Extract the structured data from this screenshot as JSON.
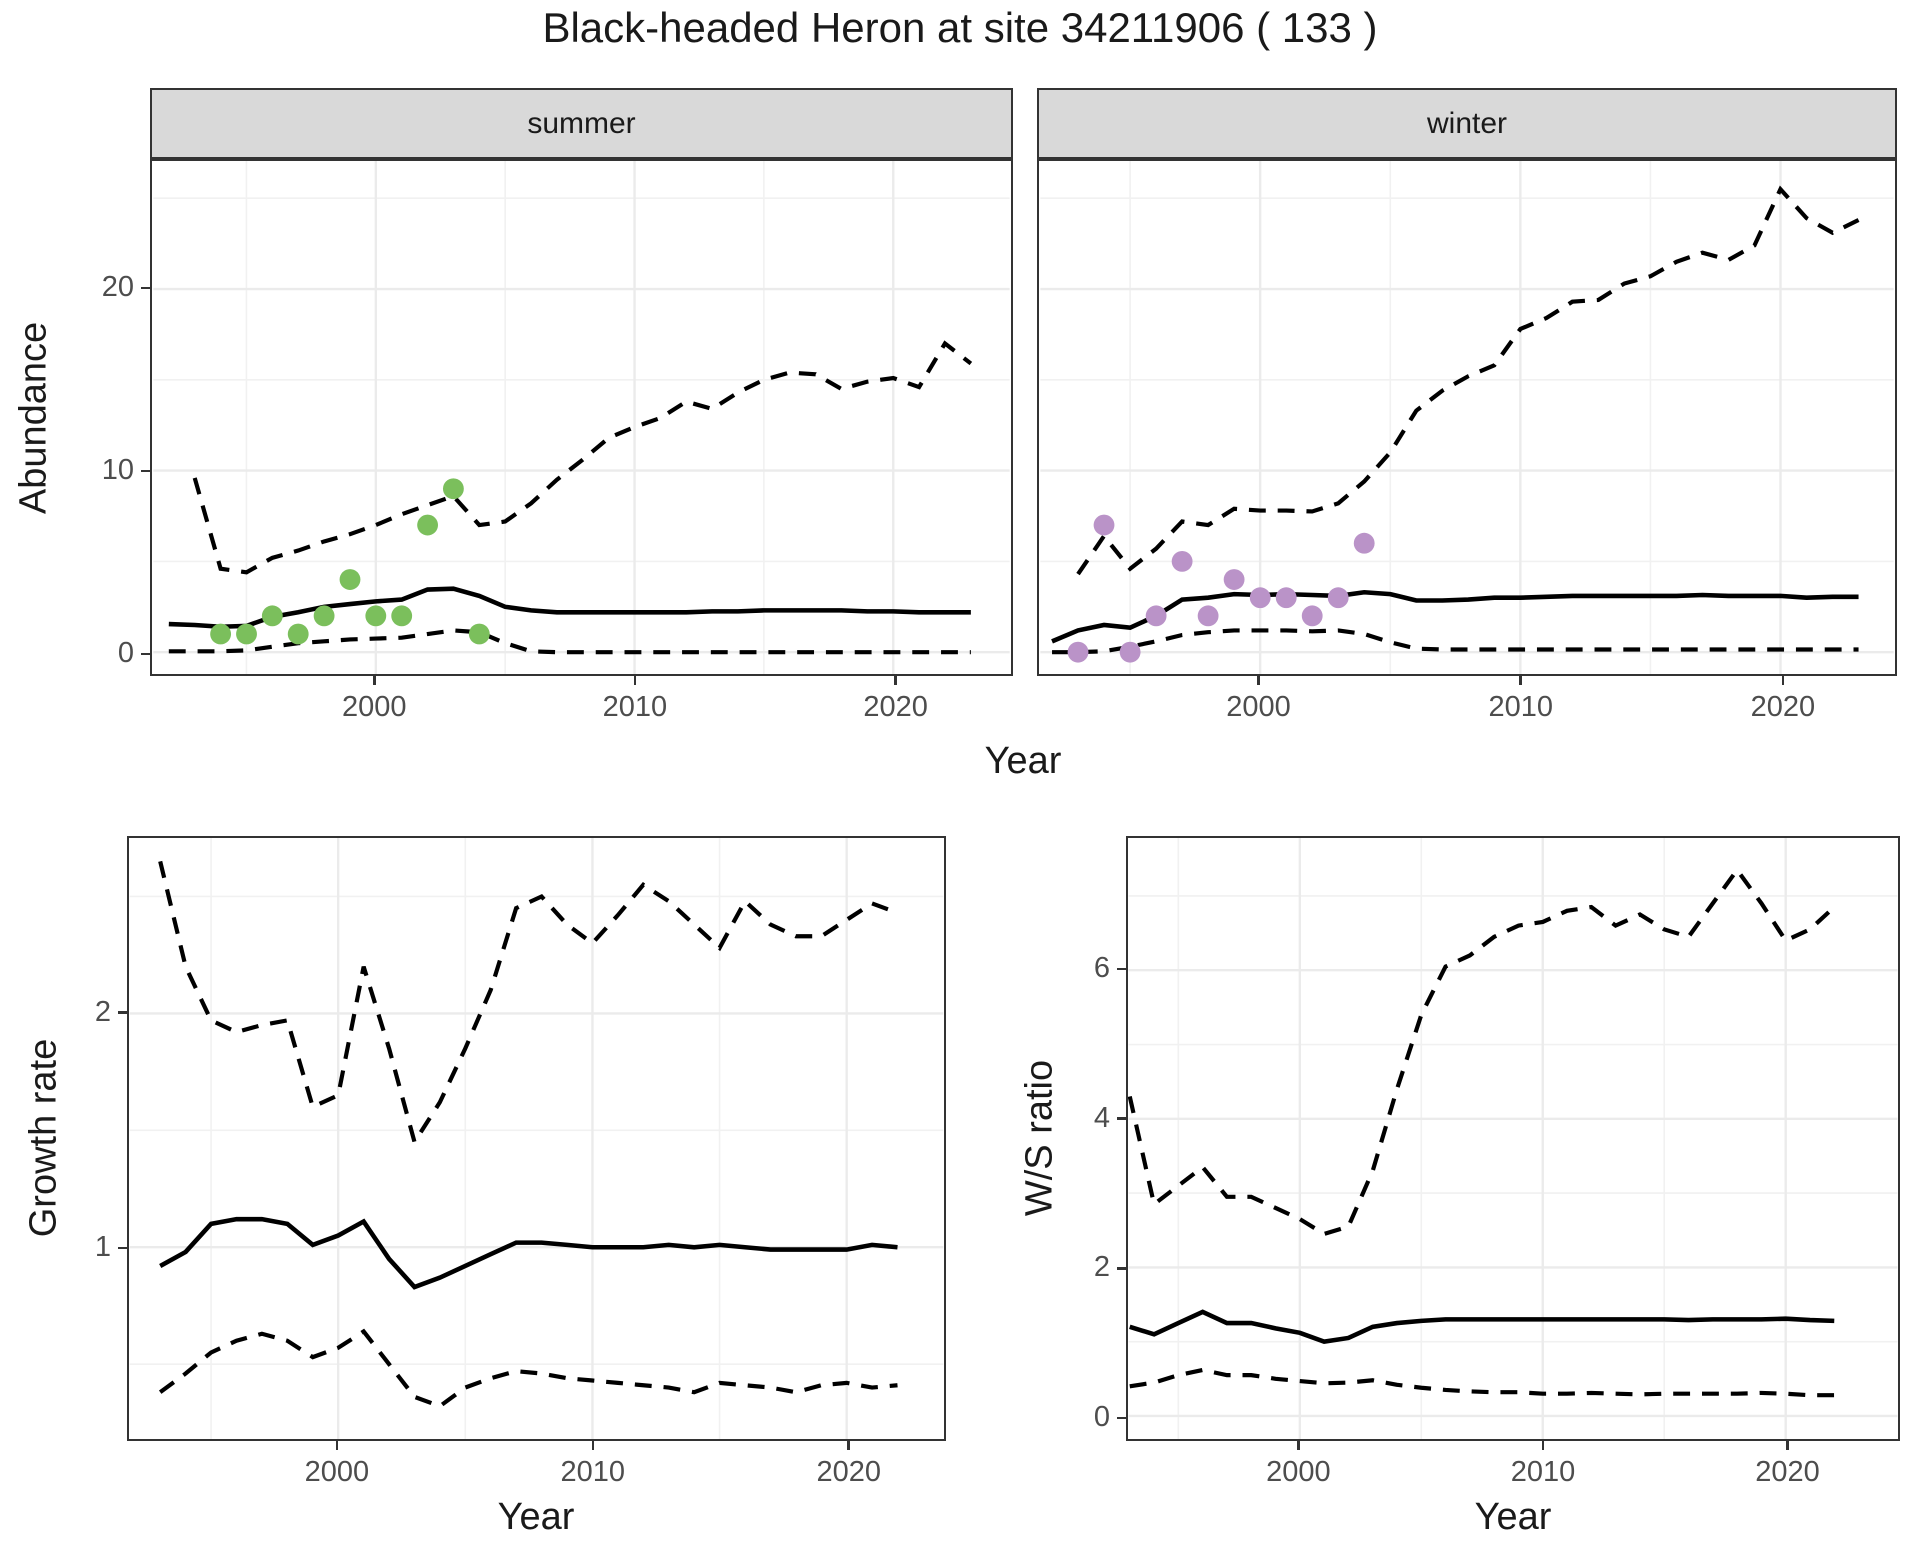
{
  "title": "Black-headed Heron at site 34211906 ( 133 )",
  "colors": {
    "line": "#000000",
    "grid_major": "#ebebeb",
    "grid_minor": "#f1f1f1",
    "strip_bg": "#d9d9d9",
    "panel_border": "#333333",
    "axis_text": "#4d4d4d",
    "summer_points": "#7bbf5c",
    "winter_points": "#ba93c8"
  },
  "chart_data": [
    {
      "id": "summer-abundance",
      "type": "line",
      "facet": "summer",
      "xlabel": "Year",
      "ylabel": "Abundance",
      "xlim": [
        1991.4,
        2024.5
      ],
      "ylim": [
        -1.2,
        27.05
      ],
      "x_major": [
        2000,
        2010,
        2020
      ],
      "x_minor": [
        1995,
        2005,
        2015
      ],
      "y_major": [
        0,
        10,
        20
      ],
      "y_minor": [
        5,
        15,
        25
      ],
      "x_tick_labels": [
        "2000",
        "2010",
        "2020"
      ],
      "y_tick_labels": [
        "0",
        "10",
        "20"
      ],
      "grid": true,
      "legend": "none",
      "series": [
        {
          "name": "median",
          "dash": false,
          "x": [
            1992,
            1993,
            1994,
            1995,
            1996,
            1997,
            1998,
            1999,
            2000,
            2001,
            2002,
            2003,
            2004,
            2005,
            2006,
            2007,
            2008,
            2009,
            2010,
            2011,
            2012,
            2013,
            2014,
            2015,
            2016,
            2017,
            2018,
            2019,
            2020,
            2021,
            2022,
            2023
          ],
          "y": [
            1.55,
            1.5,
            1.4,
            1.45,
            1.95,
            2.2,
            2.5,
            2.65,
            2.8,
            2.9,
            3.45,
            3.5,
            3.1,
            2.5,
            2.3,
            2.2,
            2.2,
            2.2,
            2.2,
            2.2,
            2.2,
            2.25,
            2.25,
            2.3,
            2.3,
            2.3,
            2.3,
            2.25,
            2.25,
            2.2,
            2.2,
            2.2
          ]
        },
        {
          "name": "upper-95ci",
          "dash": true,
          "x": [
            1993,
            1994,
            1995,
            1996,
            1997,
            1998,
            1999,
            2000,
            2001,
            2002,
            2003,
            2004,
            2005,
            2006,
            2007,
            2008,
            2009,
            2010,
            2011,
            2012,
            2013,
            2014,
            2015,
            2016,
            2017,
            2018,
            2019,
            2020,
            2021,
            2022,
            2023
          ],
          "y": [
            9.6,
            4.6,
            4.4,
            5.2,
            5.6,
            6.1,
            6.5,
            7.0,
            7.6,
            8.1,
            8.6,
            7.0,
            7.2,
            8.2,
            9.5,
            10.6,
            11.8,
            12.4,
            12.9,
            13.8,
            13.4,
            14.3,
            15.0,
            15.4,
            15.3,
            14.5,
            14.9,
            15.1,
            14.6,
            17.0,
            15.9
          ]
        },
        {
          "name": "lower-95ci",
          "dash": true,
          "x": [
            1992,
            1993,
            1994,
            1995,
            1996,
            1997,
            1998,
            1999,
            2000,
            2001,
            2002,
            2003,
            2004,
            2005,
            2006,
            2007,
            2008,
            2009,
            2010,
            2011,
            2012,
            2013,
            2014,
            2015,
            2016,
            2017,
            2018,
            2019,
            2020,
            2021,
            2022,
            2023
          ],
          "y": [
            0.05,
            0.05,
            0.05,
            0.1,
            0.3,
            0.5,
            0.6,
            0.7,
            0.75,
            0.8,
            1.0,
            1.2,
            1.1,
            0.5,
            0.05,
            0,
            0,
            0,
            0,
            0,
            0,
            0,
            0,
            0,
            0,
            0,
            0,
            0,
            0,
            0,
            0,
            0
          ]
        }
      ],
      "points": {
        "name": "observed-counts-summer",
        "color": "#7bbf5c",
        "x": [
          1994,
          1995,
          1996,
          1997,
          1998,
          1999,
          2000,
          2001,
          2002,
          2003,
          2004
        ],
        "y": [
          1,
          1,
          2,
          1,
          2,
          4,
          2,
          2,
          7,
          9,
          1
        ]
      }
    },
    {
      "id": "winter-abundance",
      "type": "line",
      "facet": "winter",
      "xlabel": "Year",
      "ylabel": "Abundance",
      "xlim": [
        1991.55,
        2024.35
      ],
      "ylim": [
        -1.2,
        27.05
      ],
      "x_major": [
        2000,
        2010,
        2020
      ],
      "x_minor": [
        1995,
        2005,
        2015
      ],
      "y_major": [
        0,
        10,
        20
      ],
      "y_minor": [
        5,
        15,
        25
      ],
      "x_tick_labels": [
        "2000",
        "2010",
        "2020"
      ],
      "y_tick_labels": [],
      "grid": true,
      "legend": "none",
      "series": [
        {
          "name": "median",
          "dash": false,
          "x": [
            1992,
            1993,
            1994,
            1995,
            1996,
            1997,
            1998,
            1999,
            2000,
            2001,
            2002,
            2003,
            2004,
            2005,
            2006,
            2007,
            2008,
            2009,
            2010,
            2011,
            2012,
            2013,
            2014,
            2015,
            2016,
            2017,
            2018,
            2019,
            2020,
            2021,
            2022,
            2023
          ],
          "y": [
            0.6,
            1.2,
            1.5,
            1.35,
            2.0,
            2.9,
            3.0,
            3.2,
            3.15,
            3.2,
            3.15,
            3.1,
            3.3,
            3.2,
            2.85,
            2.85,
            2.9,
            3.0,
            3.0,
            3.05,
            3.1,
            3.1,
            3.1,
            3.1,
            3.1,
            3.15,
            3.1,
            3.1,
            3.1,
            3.0,
            3.05,
            3.05
          ]
        },
        {
          "name": "upper-95ci",
          "dash": true,
          "x": [
            1993,
            1994,
            1995,
            1996,
            1997,
            1998,
            1999,
            2000,
            2001,
            2002,
            2003,
            2004,
            2005,
            2006,
            2007,
            2008,
            2009,
            2010,
            2011,
            2012,
            2013,
            2014,
            2015,
            2016,
            2017,
            2018,
            2019,
            2020,
            2021,
            2022,
            2023
          ],
          "y": [
            4.3,
            6.4,
            4.6,
            5.7,
            7.2,
            7.0,
            7.9,
            7.8,
            7.8,
            7.75,
            8.2,
            9.4,
            11.0,
            13.3,
            14.4,
            15.2,
            15.8,
            17.8,
            18.4,
            19.3,
            19.4,
            20.3,
            20.7,
            21.5,
            22.0,
            21.6,
            22.4,
            25.5,
            23.9,
            23.1,
            23.8
          ]
        },
        {
          "name": "lower-95ci",
          "dash": true,
          "x": [
            1992,
            1993,
            1994,
            1995,
            1996,
            1997,
            1998,
            1999,
            2000,
            2001,
            2002,
            2003,
            2004,
            2005,
            2006,
            2007,
            2008,
            2009,
            2010,
            2011,
            2012,
            2013,
            2014,
            2015,
            2016,
            2017,
            2018,
            2019,
            2020,
            2021,
            2022,
            2023
          ],
          "y": [
            0,
            0,
            0.05,
            0.3,
            0.6,
            0.95,
            1.1,
            1.2,
            1.2,
            1.2,
            1.15,
            1.2,
            1.0,
            0.55,
            0.2,
            0.15,
            0.15,
            0.15,
            0.15,
            0.15,
            0.15,
            0.15,
            0.15,
            0.15,
            0.15,
            0.15,
            0.15,
            0.15,
            0.15,
            0.15,
            0.15,
            0.15
          ]
        }
      ],
      "points": {
        "name": "observed-counts-winter",
        "color": "#ba93c8",
        "x": [
          1993,
          1994,
          1995,
          1996,
          1997,
          1998,
          1999,
          2000,
          2001,
          2002,
          2003,
          2004
        ],
        "y": [
          0,
          7,
          0,
          2,
          5,
          2,
          4,
          3,
          3,
          2,
          3,
          6
        ]
      }
    },
    {
      "id": "growth-rate",
      "type": "line",
      "facet": "",
      "xlabel": "Year",
      "ylabel": "Growth rate",
      "xlim": [
        1991.8,
        2023.8
      ],
      "ylim": [
        0.18,
        2.75
      ],
      "x_major": [
        2000,
        2010,
        2020
      ],
      "x_minor": [
        1995,
        2005,
        2015
      ],
      "y_major": [
        1,
        2
      ],
      "y_minor": [
        0.5,
        1.5,
        2.5
      ],
      "x_tick_labels": [
        "2000",
        "2010",
        "2020"
      ],
      "y_tick_labels": [
        "1",
        "2"
      ],
      "grid": true,
      "legend": "none",
      "series": [
        {
          "name": "median",
          "dash": false,
          "x": [
            1993,
            1994,
            1995,
            1996,
            1997,
            1998,
            1999,
            2000,
            2001,
            2002,
            2003,
            2004,
            2005,
            2006,
            2007,
            2008,
            2009,
            2010,
            2011,
            2012,
            2013,
            2014,
            2015,
            2016,
            2017,
            2018,
            2019,
            2020,
            2021,
            2022
          ],
          "y": [
            0.92,
            0.98,
            1.1,
            1.12,
            1.12,
            1.1,
            1.01,
            1.05,
            1.11,
            0.95,
            0.83,
            0.87,
            0.92,
            0.97,
            1.02,
            1.02,
            1.01,
            1.0,
            1.0,
            1.0,
            1.01,
            1.0,
            1.01,
            1.0,
            0.99,
            0.99,
            0.99,
            0.99,
            1.01,
            1.0
          ]
        },
        {
          "name": "upper-95ci",
          "dash": true,
          "x": [
            1993,
            1994,
            1995,
            1996,
            1997,
            1998,
            1999,
            2000,
            2001,
            2002,
            2003,
            2004,
            2005,
            2006,
            2007,
            2008,
            2009,
            2010,
            2011,
            2012,
            2013,
            2014,
            2015,
            2016,
            2017,
            2018,
            2019,
            2020,
            2021,
            2022
          ],
          "y": [
            2.65,
            2.2,
            1.97,
            1.92,
            1.95,
            1.97,
            1.6,
            1.65,
            2.2,
            1.85,
            1.45,
            1.62,
            1.85,
            2.1,
            2.45,
            2.5,
            2.38,
            2.3,
            2.42,
            2.55,
            2.48,
            2.38,
            2.28,
            2.48,
            2.38,
            2.33,
            2.33,
            2.4,
            2.47,
            2.43
          ]
        },
        {
          "name": "lower-95ci",
          "dash": true,
          "x": [
            1993,
            1994,
            1995,
            1996,
            1997,
            1998,
            1999,
            2000,
            2001,
            2002,
            2003,
            2004,
            2005,
            2006,
            2007,
            2008,
            2009,
            2010,
            2011,
            2012,
            2013,
            2014,
            2015,
            2016,
            2017,
            2018,
            2019,
            2020,
            2021,
            2022
          ],
          "y": [
            0.38,
            0.46,
            0.55,
            0.6,
            0.63,
            0.6,
            0.53,
            0.57,
            0.64,
            0.5,
            0.36,
            0.32,
            0.4,
            0.44,
            0.47,
            0.46,
            0.44,
            0.43,
            0.42,
            0.41,
            0.4,
            0.38,
            0.42,
            0.41,
            0.4,
            0.38,
            0.41,
            0.42,
            0.4,
            0.41
          ]
        }
      ],
      "points": null
    },
    {
      "id": "ws-ratio",
      "type": "line",
      "facet": "",
      "xlabel": "Year",
      "ylabel": "W/S ratio",
      "xlim": [
        1992.95,
        2024.6
      ],
      "ylim": [
        -0.31,
        7.78
      ],
      "x_major": [
        2000,
        2010,
        2020
      ],
      "x_minor": [
        1995,
        2005,
        2015
      ],
      "y_major": [
        0,
        2,
        4,
        6
      ],
      "y_minor": [
        1,
        3,
        5,
        7
      ],
      "x_tick_labels": [
        "2000",
        "2010",
        "2020"
      ],
      "y_tick_labels": [
        "0",
        "2",
        "4",
        "6"
      ],
      "grid": true,
      "legend": "none",
      "series": [
        {
          "name": "median",
          "dash": false,
          "x": [
            1993,
            1994,
            1995,
            1996,
            1997,
            1998,
            1999,
            2000,
            2001,
            2002,
            2003,
            2004,
            2005,
            2006,
            2007,
            2008,
            2009,
            2010,
            2011,
            2012,
            2013,
            2014,
            2015,
            2016,
            2017,
            2018,
            2019,
            2020,
            2021,
            2022
          ],
          "y": [
            1.2,
            1.1,
            1.25,
            1.4,
            1.25,
            1.25,
            1.18,
            1.12,
            1.0,
            1.05,
            1.2,
            1.25,
            1.28,
            1.3,
            1.3,
            1.3,
            1.3,
            1.3,
            1.3,
            1.3,
            1.3,
            1.3,
            1.3,
            1.29,
            1.3,
            1.3,
            1.3,
            1.31,
            1.29,
            1.28
          ]
        },
        {
          "name": "upper-95ci",
          "dash": true,
          "x": [
            1993,
            1994,
            1995,
            1996,
            1997,
            1998,
            1999,
            2000,
            2001,
            2002,
            2003,
            2004,
            2005,
            2006,
            2007,
            2008,
            2009,
            2010,
            2011,
            2012,
            2013,
            2014,
            2015,
            2016,
            2017,
            2018,
            2019,
            2020,
            2021,
            2022
          ],
          "y": [
            4.3,
            2.85,
            3.1,
            3.35,
            2.95,
            2.95,
            2.8,
            2.65,
            2.45,
            2.55,
            3.3,
            4.4,
            5.4,
            6.05,
            6.2,
            6.45,
            6.6,
            6.65,
            6.8,
            6.85,
            6.6,
            6.75,
            6.55,
            6.45,
            6.9,
            7.35,
            6.9,
            6.4,
            6.55,
            6.85
          ]
        },
        {
          "name": "lower-95ci",
          "dash": true,
          "x": [
            1993,
            1994,
            1995,
            1996,
            1997,
            1998,
            1999,
            2000,
            2001,
            2002,
            2003,
            2004,
            2005,
            2006,
            2007,
            2008,
            2009,
            2010,
            2011,
            2012,
            2013,
            2014,
            2015,
            2016,
            2017,
            2018,
            2019,
            2020,
            2021,
            2022
          ],
          "y": [
            0.4,
            0.45,
            0.55,
            0.62,
            0.55,
            0.55,
            0.5,
            0.47,
            0.44,
            0.45,
            0.48,
            0.42,
            0.38,
            0.35,
            0.33,
            0.32,
            0.32,
            0.3,
            0.3,
            0.31,
            0.3,
            0.29,
            0.3,
            0.3,
            0.3,
            0.3,
            0.31,
            0.3,
            0.28,
            0.28
          ]
        }
      ],
      "points": null
    }
  ]
}
